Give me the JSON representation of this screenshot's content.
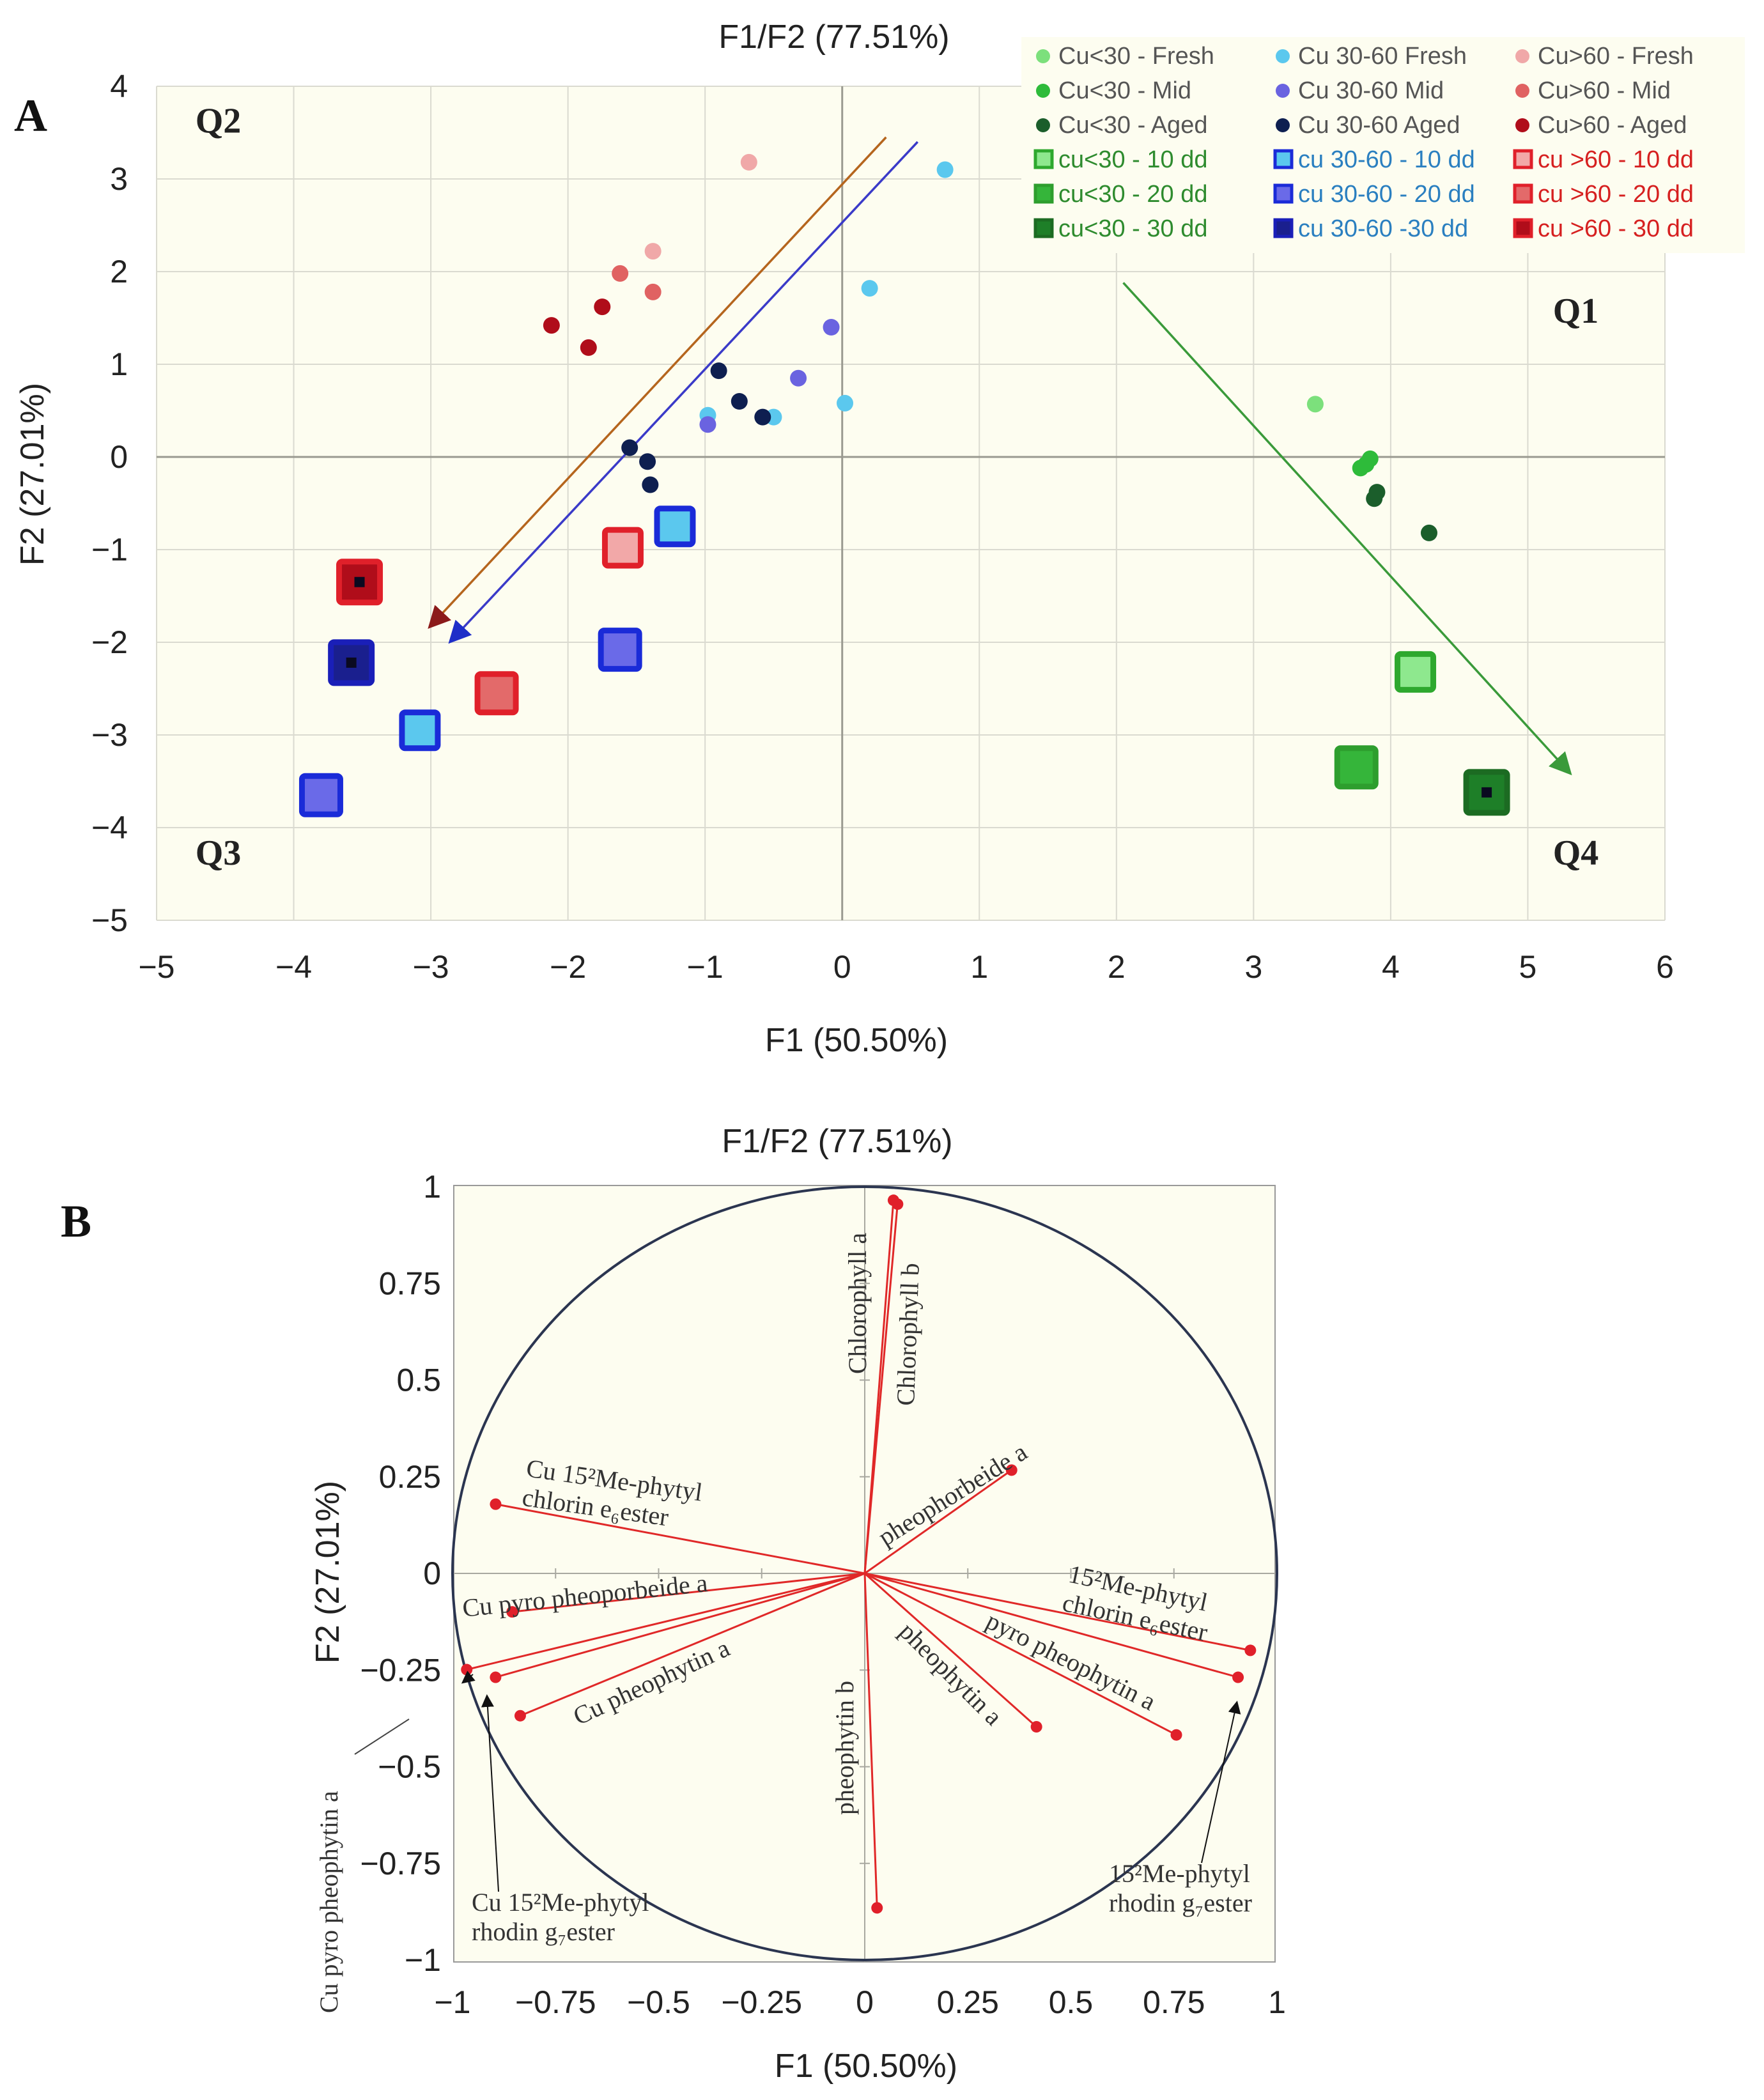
{
  "panel_labels": [
    "A",
    "B"
  ],
  "chart_data": [
    {
      "type": "scatter",
      "panel": "A",
      "title": "F1/F2 (77.51%)",
      "xlabel": "F1 (50.50%)",
      "ylabel": "F2 (27.01%)",
      "xlim": [
        -5,
        6
      ],
      "ylim": [
        -5,
        4
      ],
      "xticks": [
        "−5",
        "−4",
        "−3",
        "−2",
        "−1",
        "0",
        "1",
        "2",
        "3",
        "4",
        "5",
        "6"
      ],
      "yticks": [
        "4",
        "3",
        "2",
        "1",
        "0",
        "−1",
        "−2",
        "−3",
        "−4",
        "−5"
      ],
      "grid": true,
      "legend_position": "top-right",
      "quadrants": [
        {
          "label": "Q2",
          "x": -4.55,
          "y": 3.5
        },
        {
          "label": "Q1",
          "x": 5.35,
          "y": 1.45
        },
        {
          "label": "Q3",
          "x": -4.55,
          "y": -4.4
        },
        {
          "label": "Q4",
          "x": 5.35,
          "y": -4.4
        }
      ],
      "series": [
        {
          "name": "Cu<30 - Fresh",
          "marker": "dot",
          "color": "#7CE07C",
          "points": [
            [
              3.45,
              0.57
            ]
          ]
        },
        {
          "name": "Cu<30 - Mid",
          "marker": "dot",
          "color": "#2EBB3A",
          "points": [
            [
              3.78,
              -0.12
            ],
            [
              3.85,
              -0.02
            ],
            [
              3.82,
              -0.08
            ]
          ]
        },
        {
          "name": "Cu<30 - Aged",
          "marker": "dot",
          "color": "#1B5E2B",
          "points": [
            [
              3.88,
              -0.45
            ],
            [
              3.9,
              -0.38
            ],
            [
              4.28,
              -0.82
            ]
          ]
        },
        {
          "name": "Cu 30-60 Fresh",
          "marker": "dot",
          "color": "#5BC8EE",
          "points": [
            [
              0.75,
              3.1
            ],
            [
              0.2,
              1.82
            ],
            [
              0.02,
              0.58
            ],
            [
              -0.5,
              0.43
            ],
            [
              -0.98,
              0.45
            ]
          ]
        },
        {
          "name": "Cu 30-60 Mid",
          "marker": "dot",
          "color": "#6A63E0",
          "points": [
            [
              -0.08,
              1.4
            ],
            [
              -0.32,
              0.85
            ],
            [
              -0.98,
              0.35
            ]
          ]
        },
        {
          "name": "Cu 30-60 Aged",
          "marker": "dot",
          "color": "#0E1F50",
          "points": [
            [
              -0.9,
              0.93
            ],
            [
              -0.75,
              0.6
            ],
            [
              -0.58,
              0.43
            ],
            [
              -1.55,
              0.1
            ],
            [
              -1.42,
              -0.05
            ],
            [
              -1.4,
              -0.3
            ]
          ]
        },
        {
          "name": "Cu>60 - Fresh",
          "marker": "dot",
          "color": "#F0A8A8",
          "points": [
            [
              -0.68,
              3.18
            ],
            [
              -1.38,
              2.22
            ]
          ]
        },
        {
          "name": "Cu>60 - Mid",
          "marker": "dot",
          "color": "#E06262",
          "points": [
            [
              -1.62,
              1.98
            ],
            [
              -1.38,
              1.78
            ]
          ]
        },
        {
          "name": "Cu>60 - Aged",
          "marker": "dot",
          "color": "#B00D1A",
          "points": [
            [
              -2.12,
              1.42
            ],
            [
              -1.75,
              1.62
            ],
            [
              -1.85,
              1.18
            ]
          ]
        },
        {
          "name": "cu<30 - 10 dd",
          "marker": "square",
          "size": 1,
          "color": "#2EA82E",
          "fill": "#8EE88E",
          "points": [
            [
              4.18,
              -2.32
            ]
          ]
        },
        {
          "name": "cu<30 - 20 dd",
          "marker": "square",
          "size": 2,
          "color": "#2E9E2E",
          "fill": "#35B53A",
          "points": [
            [
              3.75,
              -3.35
            ]
          ]
        },
        {
          "name": "cu<30 - 30 dd",
          "marker": "square",
          "size": 3,
          "color": "#1C6B22",
          "fill": "#1E7F28",
          "points": [
            [
              4.7,
              -3.62
            ]
          ]
        },
        {
          "name": "cu 30-60 - 10 dd",
          "marker": "square",
          "size": 1,
          "color": "#1A2BD8",
          "fill": "#5BC8EE",
          "points": [
            [
              -1.22,
              -0.75
            ],
            [
              -3.08,
              -2.95
            ]
          ]
        },
        {
          "name": "cu 30-60 - 20 dd",
          "marker": "square",
          "size": 2,
          "color": "#1A2BD8",
          "fill": "#6A6AE8",
          "points": [
            [
              -1.62,
              -2.08
            ],
            [
              -3.8,
              -3.65
            ]
          ]
        },
        {
          "name": "cu 30-60 -30 dd",
          "marker": "square",
          "size": 3,
          "color": "#1A1FB8",
          "fill": "#1A1F8E",
          "points": [
            [
              -3.58,
              -2.22
            ]
          ]
        },
        {
          "name": "cu >60 - 10 dd",
          "marker": "square",
          "size": 1,
          "color": "#E0202A",
          "fill": "#F2A8A8",
          "points": [
            [
              -1.6,
              -0.98
            ]
          ]
        },
        {
          "name": "cu >60 - 20 dd",
          "marker": "square",
          "size": 2,
          "color": "#E0202A",
          "fill": "#E36A6A",
          "points": [
            [
              -2.52,
              -2.55
            ]
          ]
        },
        {
          "name": "cu >60 - 30 dd",
          "marker": "square",
          "size": 3,
          "color": "#E0202A",
          "fill": "#B00D1A",
          "points": [
            [
              -3.52,
              -1.35
            ]
          ]
        }
      ],
      "arrows": [
        {
          "name": "red-trend",
          "color": "#B5651D",
          "from": [
            0.32,
            3.45
          ],
          "to": [
            -3.0,
            -1.82
          ]
        },
        {
          "name": "blue-trend",
          "color": "#3A3AC8",
          "from": [
            0.55,
            3.4
          ],
          "to": [
            -2.85,
            -1.98
          ]
        },
        {
          "name": "green-trend",
          "color": "#3A9A3A",
          "from": [
            2.05,
            1.88
          ],
          "to": [
            5.3,
            -3.4
          ]
        }
      ]
    },
    {
      "type": "scatter",
      "subtype": "correlation-circle",
      "panel": "B",
      "title": "F1/F2 (77.51%)",
      "xlabel": "F1 (50.50%)",
      "ylabel": "F2 (27.01%)",
      "xlim": [
        -1,
        1
      ],
      "ylim": [
        -1,
        1
      ],
      "xticks": [
        "−1",
        "−0.75",
        "−0.5",
        "−0.25",
        "0",
        "0.25",
        "0.5",
        "0.75",
        "1"
      ],
      "yticks": [
        "1",
        "0.75",
        "0.5",
        "0.25",
        "0",
        "−0.25",
        "−0.5",
        "−0.75",
        "−1"
      ],
      "vectors": [
        {
          "label": "Chlorophyll a",
          "x": 0.07,
          "y": 0.97
        },
        {
          "label": "Chlorophyll b",
          "x": 0.08,
          "y": 0.96
        },
        {
          "label": "pheophorbeide a",
          "x": 0.36,
          "y": 0.27
        },
        {
          "label": "Cu 15²Me-phytyl chlorin e₆ester",
          "x": -0.9,
          "y": 0.18
        },
        {
          "label": "Cu pyro pheoporbeide a",
          "x": -0.86,
          "y": -0.1
        },
        {
          "label": "Cu pheophytin a",
          "x": -0.84,
          "y": -0.37
        },
        {
          "label": "Cu pyro pheophytin a",
          "x": -0.97,
          "y": -0.25
        },
        {
          "label": "Cu 15²Me-phytyl rhodin g₇ester",
          "x": -0.9,
          "y": -0.27
        },
        {
          "label": "pheophytin b",
          "x": 0.03,
          "y": -0.87
        },
        {
          "label": "pheophytin a",
          "x": 0.42,
          "y": -0.4
        },
        {
          "label": "15²Me-phytyl chlorin e₆ester",
          "x": 0.94,
          "y": -0.2
        },
        {
          "label": "pyro pheophytin a",
          "x": 0.76,
          "y": -0.42
        },
        {
          "label": "15²Me-phytyl rhodin g₇ester",
          "x": 0.91,
          "y": -0.27
        }
      ]
    }
  ]
}
